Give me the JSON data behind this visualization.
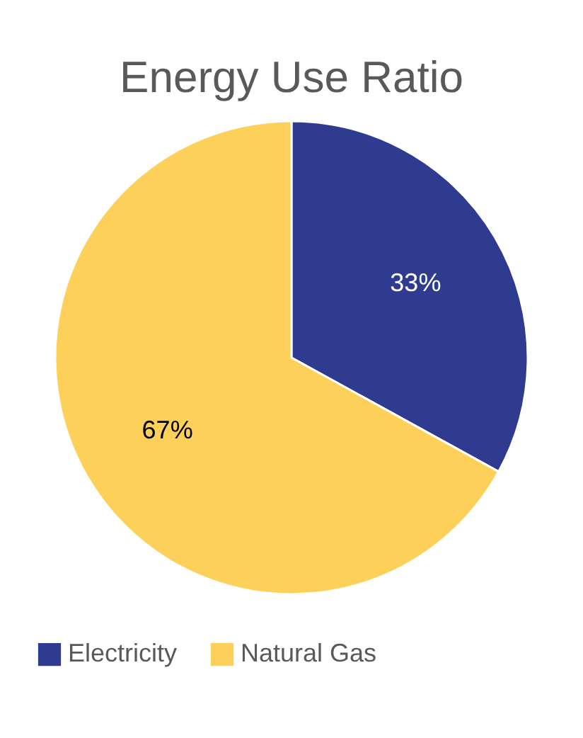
{
  "chart_data": {
    "type": "pie",
    "title": "Energy Use Ratio",
    "categories": [
      "Electricity",
      "Natural Gas"
    ],
    "values": [
      33,
      67
    ],
    "colors": [
      "#2e3b8f",
      "#fdd05a"
    ],
    "value_labels": [
      "33%",
      "67%"
    ],
    "legend": "bottom"
  }
}
